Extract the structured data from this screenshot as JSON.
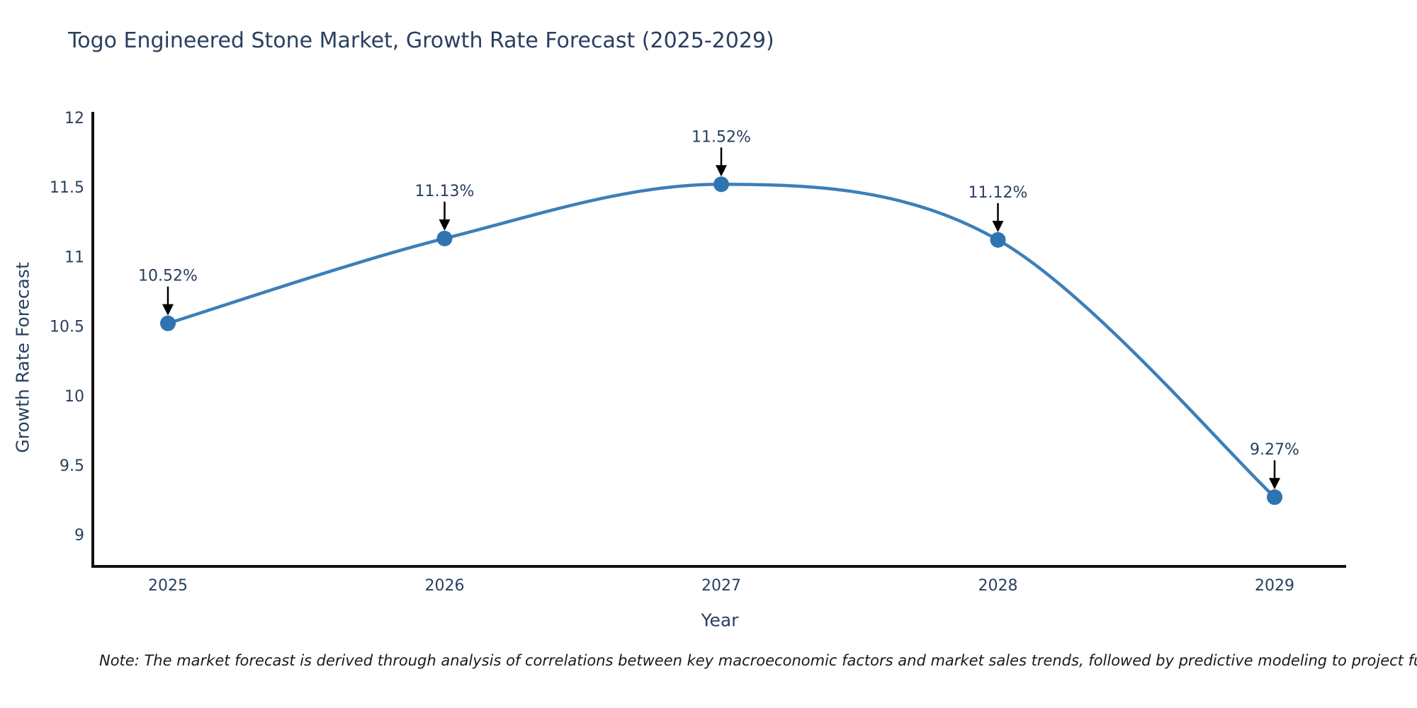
{
  "title": "Togo Engineered Stone Market, Growth Rate Forecast (2025-2029)",
  "note": "Note: The market forecast is derived through analysis of correlations between key macroeconomic factors and market sales trends, followed by predictive modeling to project future sal",
  "chart_data": {
    "type": "line",
    "title": "Togo Engineered Stone Market, Growth Rate Forecast (2025-2029)",
    "xlabel": "Year",
    "ylabel": "Growth Rate Forecast",
    "categories": [
      "2025",
      "2026",
      "2027",
      "2028",
      "2029"
    ],
    "values": [
      10.52,
      11.13,
      11.52,
      11.12,
      9.27
    ],
    "point_labels": [
      "10.52%",
      "11.13%",
      "11.52%",
      "11.12%",
      "9.27%"
    ],
    "series": [
      {
        "name": "Growth Rate Forecast",
        "values": [
          10.52,
          11.13,
          11.52,
          11.12,
          9.27
        ]
      }
    ],
    "y_ticks": [
      12,
      11.5,
      11,
      10.5,
      10,
      9.5,
      9
    ],
    "y_tick_labels": [
      "12",
      "11.5",
      "11",
      "10.5",
      "10",
      "9.5",
      "9"
    ],
    "ylim": [
      8.77,
      12.03
    ],
    "grid": false,
    "legend_position": "none",
    "line_shape": "spline",
    "annotations_have_arrows": true,
    "colors": {
      "line": "#3d7fb8",
      "marker": "#2e74b0",
      "text": "#2a3f5f",
      "axis": "#111111",
      "annotation_text": "#2a3f5f",
      "annotation_arrow": "#000000",
      "background": "#ffffff"
    }
  }
}
